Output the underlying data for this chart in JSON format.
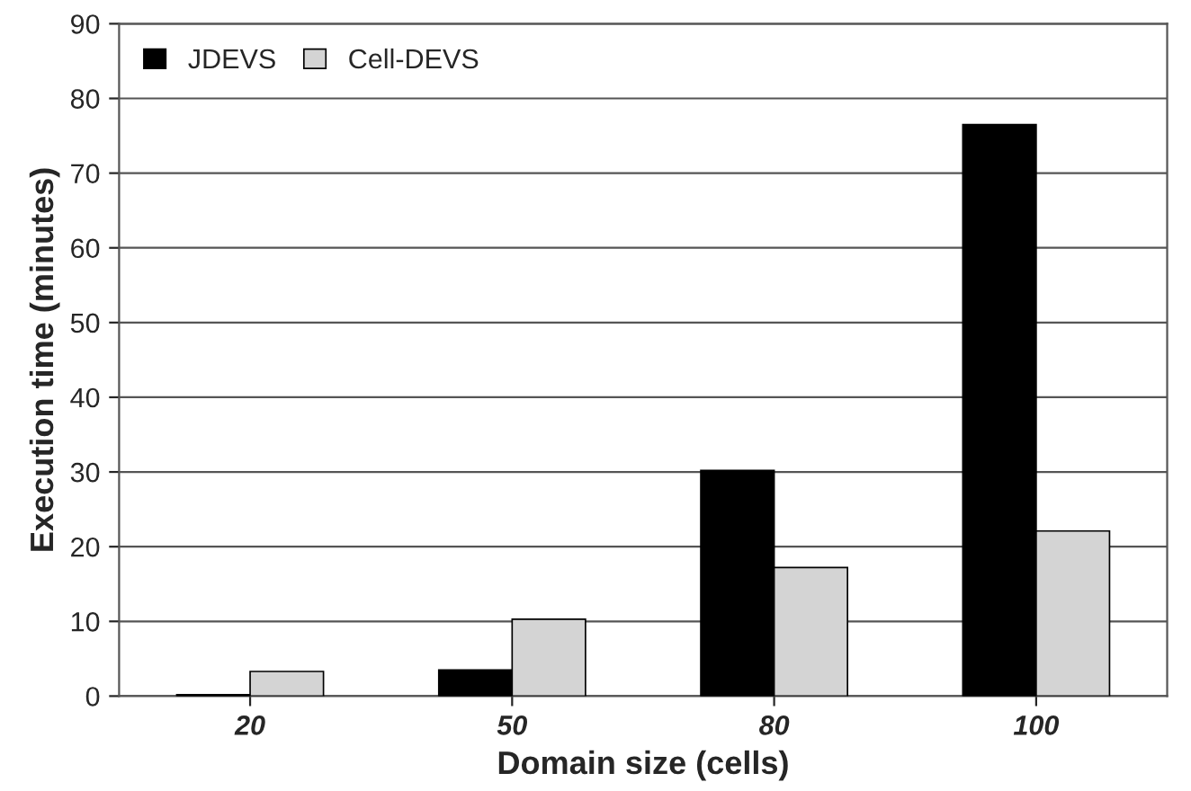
{
  "chart_data": {
    "type": "bar",
    "xlabel": "Domain size (cells)",
    "ylabel": "Execution time (minutes)",
    "categories": [
      "20",
      "50",
      "80",
      "100"
    ],
    "series": [
      {
        "name": "JDEVS",
        "color": "#000000",
        "values": [
          0.2,
          3.5,
          30.2,
          76.5
        ]
      },
      {
        "name": "Cell-DEVS",
        "color": "#d4d4d4",
        "values": [
          3.3,
          10.3,
          17.2,
          22.1
        ]
      }
    ],
    "ylim": [
      0,
      90
    ],
    "yticks": [
      0,
      10,
      20,
      30,
      40,
      50,
      60,
      70,
      80,
      90
    ],
    "grid": "y",
    "legend": "top left"
  }
}
